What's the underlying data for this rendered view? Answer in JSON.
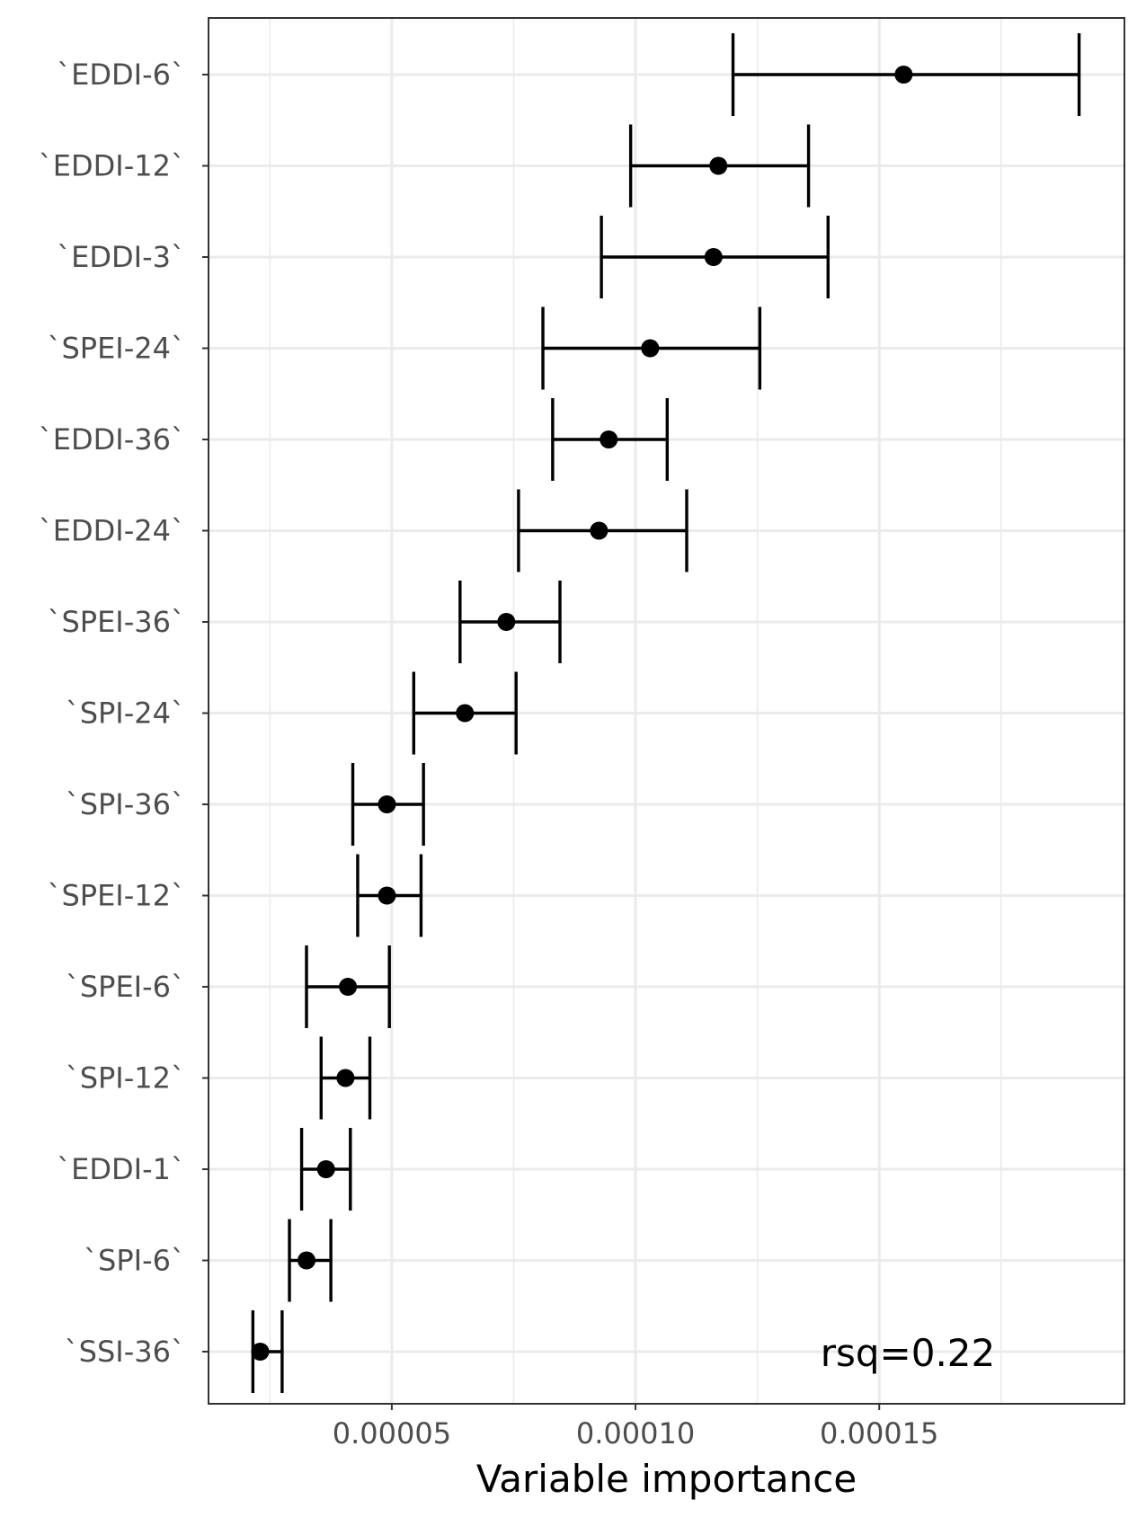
{
  "chart_data": {
    "type": "scatter",
    "xlabel": "Variable importance",
    "ylabel": "",
    "xlim": [
      1.24e-05,
      0.0002003
    ],
    "x_ticks": [
      5e-05,
      0.0001,
      0.00015
    ],
    "x_tick_labels": [
      "0.00005",
      "0.00010",
      "0.00015"
    ],
    "grid": true,
    "annotation": "rsq=0.22",
    "categories": [
      "`EDDI-6`",
      "`EDDI-12`",
      "`EDDI-3`",
      "`SPEI-24`",
      "`EDDI-36`",
      "`EDDI-24`",
      "`SPEI-36`",
      "`SPI-24`",
      "`SPI-36`",
      "`SPEI-12`",
      "`SPEI-6`",
      "`SPI-12`",
      "`EDDI-1`",
      "`SPI-6`",
      "`SSI-36`"
    ],
    "values": [
      0.000155,
      0.000117,
      0.000116,
      0.000103,
      9.45e-05,
      9.25e-05,
      7.35e-05,
      6.5e-05,
      4.9e-05,
      4.9e-05,
      4.1e-05,
      4.05e-05,
      3.65e-05,
      3.25e-05,
      2.3e-05
    ],
    "error_low": [
      0.00012,
      9.9e-05,
      9.3e-05,
      8.1e-05,
      8.3e-05,
      7.6e-05,
      6.4e-05,
      5.45e-05,
      4.2e-05,
      4.3e-05,
      3.25e-05,
      3.55e-05,
      3.15e-05,
      2.9e-05,
      2.15e-05
    ],
    "error_high": [
      0.000191,
      0.0001355,
      0.0001395,
      0.0001255,
      0.0001065,
      0.0001105,
      8.45e-05,
      7.55e-05,
      5.65e-05,
      5.6e-05,
      4.95e-05,
      4.55e-05,
      4.15e-05,
      3.75e-05,
      2.75e-05
    ]
  }
}
